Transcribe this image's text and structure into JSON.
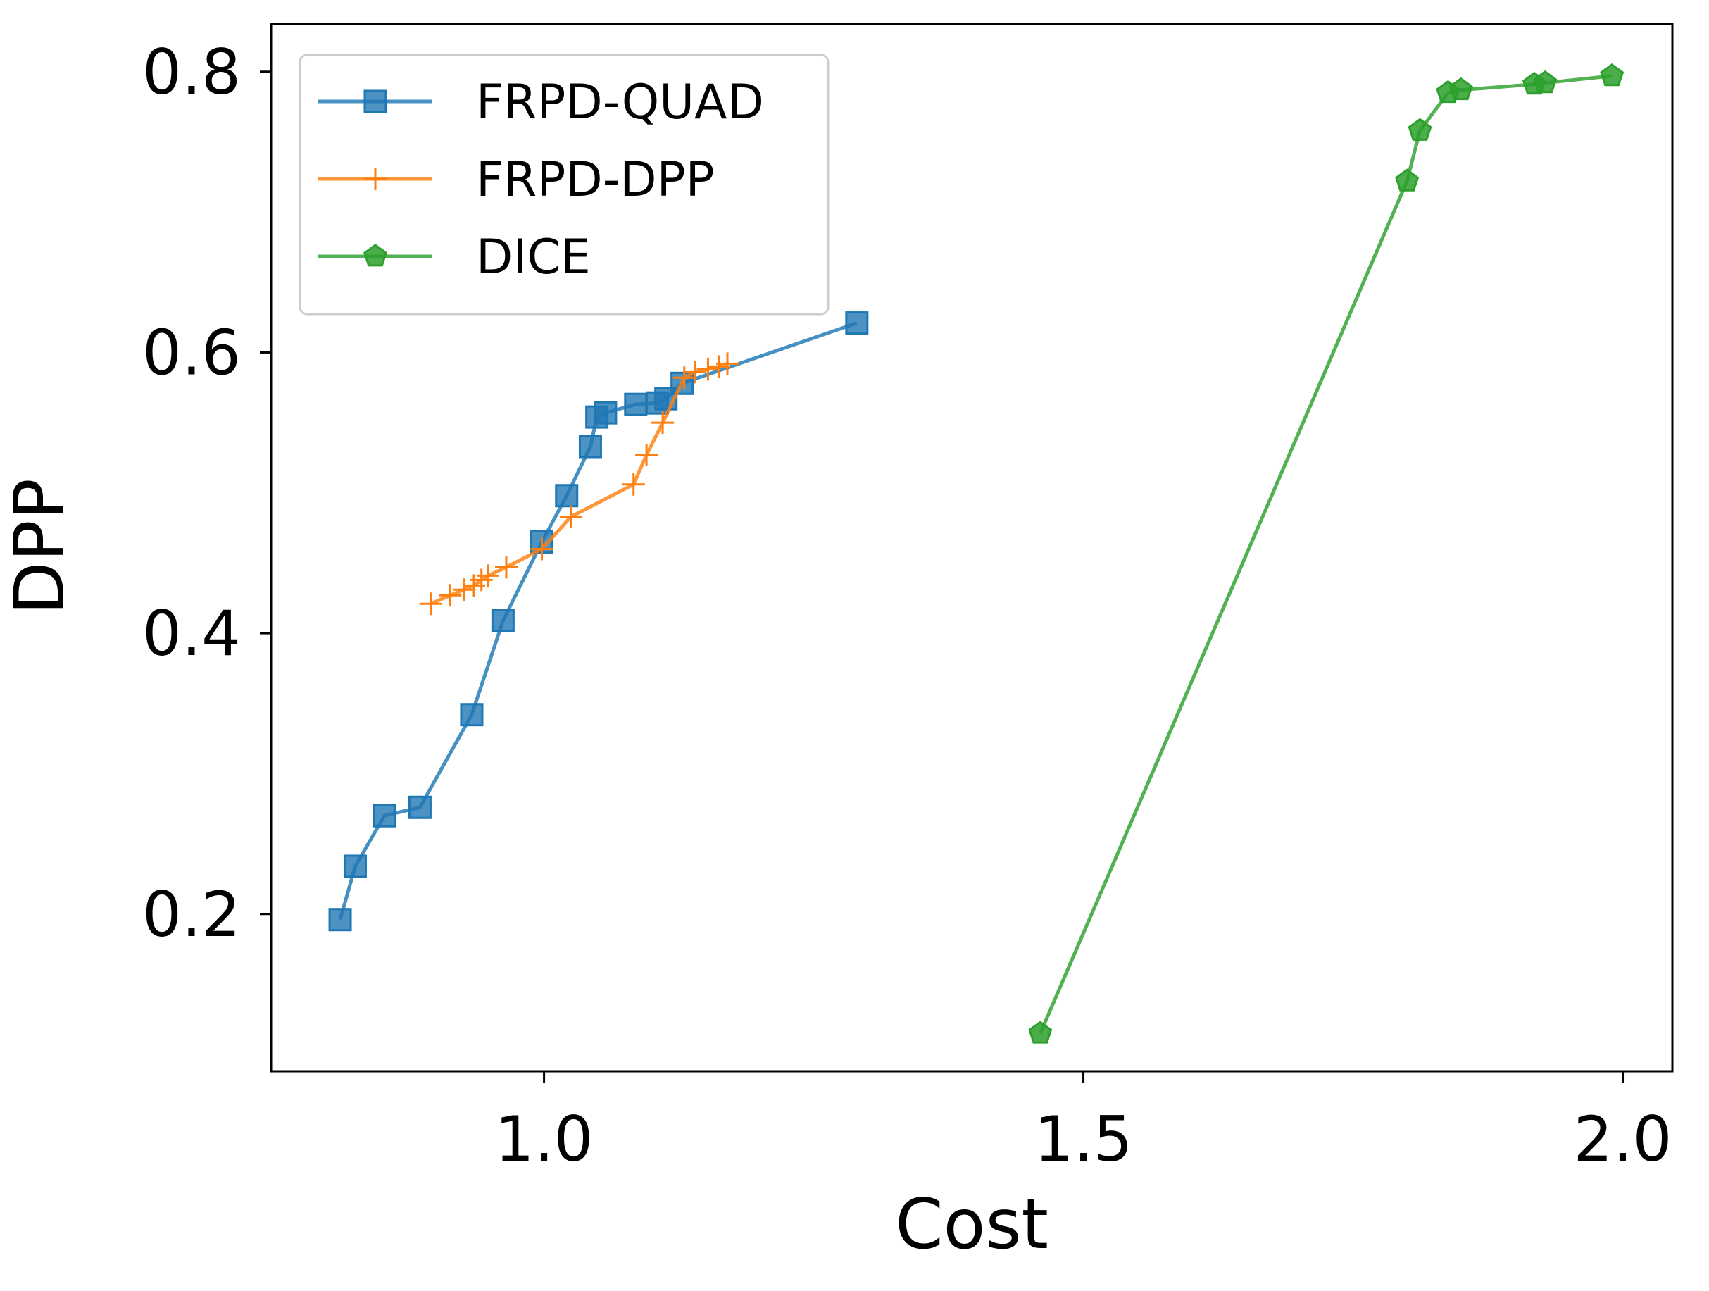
{
  "chart_data": {
    "type": "line",
    "xlabel": "Cost",
    "ylabel": "DPP",
    "xlim": [
      0.747,
      2.046
    ],
    "ylim": [
      0.088,
      0.834
    ],
    "x_ticks": [
      "1.0",
      "1.5",
      "2.0"
    ],
    "y_ticks": [
      "0.2",
      "0.4",
      "0.6",
      "0.8"
    ],
    "grid": false,
    "legend_position": "upper-left",
    "series": [
      {
        "name": "FRPD-QUAD",
        "color": "#1f77b4",
        "marker": "square",
        "points": [
          [
            0.811,
            0.196
          ],
          [
            0.825,
            0.234
          ],
          [
            0.852,
            0.27
          ],
          [
            0.885,
            0.276
          ],
          [
            0.933,
            0.342
          ],
          [
            0.962,
            0.409
          ],
          [
            0.998,
            0.465
          ],
          [
            1.021,
            0.498
          ],
          [
            1.043,
            0.533
          ],
          [
            1.049,
            0.554
          ],
          [
            1.057,
            0.557
          ],
          [
            1.085,
            0.563
          ],
          [
            1.105,
            0.564
          ],
          [
            1.113,
            0.567
          ],
          [
            1.128,
            0.578
          ],
          [
            1.29,
            0.621
          ]
        ]
      },
      {
        "name": "FRPD-DPP",
        "color": "#ff7f0e",
        "marker": "plus",
        "points": [
          [
            0.895,
            0.421
          ],
          [
            0.913,
            0.427
          ],
          [
            0.926,
            0.431
          ],
          [
            0.935,
            0.434
          ],
          [
            0.942,
            0.438
          ],
          [
            0.948,
            0.441
          ],
          [
            0.965,
            0.447
          ],
          [
            0.998,
            0.46
          ],
          [
            1.025,
            0.483
          ],
          [
            1.083,
            0.506
          ],
          [
            1.095,
            0.527
          ],
          [
            1.11,
            0.55
          ],
          [
            1.13,
            0.582
          ],
          [
            1.14,
            0.586
          ],
          [
            1.152,
            0.588
          ],
          [
            1.162,
            0.59
          ],
          [
            1.17,
            0.592
          ]
        ]
      },
      {
        "name": "DICE",
        "color": "#2ca02c",
        "marker": "pentagon",
        "points": [
          [
            1.46,
            0.115
          ],
          [
            1.8,
            0.722
          ],
          [
            1.812,
            0.758
          ],
          [
            1.838,
            0.785
          ],
          [
            1.85,
            0.787
          ],
          [
            1.918,
            0.791
          ],
          [
            1.928,
            0.792
          ],
          [
            1.99,
            0.797
          ]
        ]
      }
    ]
  }
}
